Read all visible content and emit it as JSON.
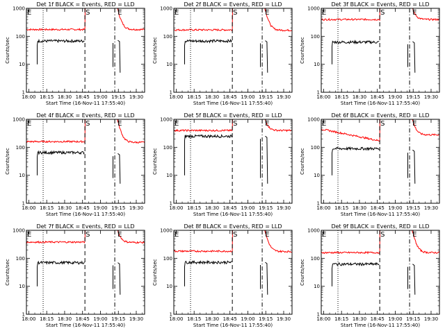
{
  "chart_data": {
    "type": "line",
    "grid": false,
    "ylim": [
      1,
      1000
    ],
    "yscale": "log",
    "yticks": [
      "1",
      "10",
      "100",
      "1000"
    ],
    "ylabel": "Counts/sec",
    "xlabel": "Start Time (16-Nov-11 17:55:40)",
    "xtick_labels": [
      "18:00",
      "18:15",
      "18:30",
      "18:45",
      "19:00",
      "19:15",
      "19:30"
    ],
    "xtick_times_min": [
      0,
      15,
      30,
      45,
      60,
      75,
      90
    ],
    "xlim_min": [
      -2,
      97
    ],
    "colors": {
      "events": "#000000",
      "lld": "#ff0000"
    },
    "marker_labels": {
      "e": "E",
      "s": "S"
    },
    "panels": [
      {
        "title": "Det 1f BLACK = Events, RED = LLD",
        "lld_level": 175,
        "lld_peak": 1100,
        "lld_shape": "flat",
        "ev_level": 68,
        "ev_start": 7,
        "ev_end": 47,
        "dot1": 12,
        "dash_s": 47,
        "dash_e": 72,
        "after_lld": 175,
        "after_ev": 72
      },
      {
        "title": "Det 2f BLACK = Events, RED = LLD",
        "lld_level": 170,
        "lld_peak": 1100,
        "lld_shape": "flat",
        "ev_level": 68,
        "ev_start": 7,
        "ev_end": 47,
        "dot1": 12,
        "dash_s": 47,
        "dash_e": 72,
        "after_lld": 165,
        "after_ev": 70
      },
      {
        "title": "Det 3f BLACK = Events, RED = LLD",
        "lld_level": 400,
        "lld_peak": 1100,
        "lld_shape": "flat",
        "ev_level": 62,
        "ev_start": 7,
        "ev_end": 47,
        "dot1": 12,
        "dash_s": 47,
        "dash_e": 72,
        "after_lld": 400,
        "after_ev": 65
      },
      {
        "title": "Det 4f BLACK = Events, RED = LLD",
        "lld_level": 160,
        "lld_peak": 1100,
        "lld_shape": "flat",
        "ev_level": 65,
        "ev_start": 7,
        "ev_end": 47,
        "dot1": 12,
        "dash_s": 47,
        "dash_e": 72,
        "after_lld": 150,
        "after_ev": 60
      },
      {
        "title": "Det 5f BLACK = Events, RED = LLD",
        "lld_level": 400,
        "lld_peak": 1100,
        "lld_shape": "flat",
        "ev_level": 250,
        "ev_start": 7,
        "ev_end": 47,
        "dot1": 12,
        "dash_s": 47,
        "dash_e": 72,
        "after_lld": 400,
        "after_ev": 250
      },
      {
        "title": "Det 6f BLACK = Events, RED = LLD",
        "lld_level": 450,
        "lld_peak": 1100,
        "lld_shape": "decay",
        "lld_end": 170,
        "ev_level": 90,
        "ev_start": 7,
        "ev_end": 47,
        "dot1": 12,
        "dash_s": 47,
        "dash_e": 72,
        "after_lld": 280,
        "after_ev": 80
      },
      {
        "title": "Det 7f BLACK = Events, RED = LLD",
        "lld_level": 380,
        "lld_peak": 1100,
        "lld_shape": "flat",
        "ev_level": 70,
        "ev_start": 7,
        "ev_end": 47,
        "dot1": 12,
        "dash_s": 47,
        "dash_e": 72,
        "after_lld": 370,
        "after_ev": 70
      },
      {
        "title": "Det 8f BLACK = Events, RED = LLD",
        "lld_level": 180,
        "lld_peak": 1100,
        "lld_shape": "flat",
        "ev_level": 72,
        "ev_start": 7,
        "ev_end": 47,
        "dot1": 12,
        "dash_s": 47,
        "dash_e": 72,
        "after_lld": 175,
        "after_ev": 72
      },
      {
        "title": "Det 9f BLACK = Events, RED = LLD",
        "lld_level": 160,
        "lld_peak": 1100,
        "lld_shape": "flat",
        "ev_level": 62,
        "ev_start": 7,
        "ev_end": 47,
        "dot1": 12,
        "dash_s": 47,
        "dash_e": 72,
        "after_lld": 160,
        "after_ev": 62
      }
    ]
  }
}
